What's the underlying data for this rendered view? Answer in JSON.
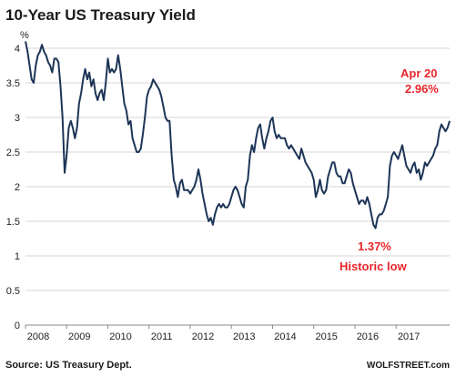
{
  "chart_data": {
    "type": "line",
    "title": "10-Year US Treasury Yield",
    "ylabel": "%",
    "xlabel": "",
    "ylim": [
      0,
      4.25
    ],
    "xlim": [
      2008.0,
      2018.3
    ],
    "yticks": [
      "0",
      "0.5",
      "1",
      "1.5",
      "2",
      "2.5",
      "3",
      "3.5",
      "4"
    ],
    "xticks": [
      "2008",
      "2009",
      "2010",
      "2011",
      "2012",
      "2013",
      "2014",
      "2015",
      "2016",
      "2017"
    ],
    "grid": "horizontal",
    "legend": "none",
    "series": [
      {
        "color": "#1d3557",
        "x": [
          2008.0,
          2008.05,
          2008.1,
          2008.15,
          2008.2,
          2008.25,
          2008.3,
          2008.35,
          2008.4,
          2008.45,
          2008.5,
          2008.55,
          2008.6,
          2008.65,
          2008.7,
          2008.75,
          2008.8,
          2008.85,
          2008.9,
          2008.95,
          2009.0,
          2009.05,
          2009.1,
          2009.15,
          2009.2,
          2009.25,
          2009.3,
          2009.35,
          2009.4,
          2009.45,
          2009.5,
          2009.55,
          2009.6,
          2009.65,
          2009.7,
          2009.75,
          2009.8,
          2009.85,
          2009.9,
          2009.95,
          2010.0,
          2010.05,
          2010.1,
          2010.15,
          2010.2,
          2010.25,
          2010.3,
          2010.35,
          2010.4,
          2010.45,
          2010.5,
          2010.55,
          2010.6,
          2010.65,
          2010.7,
          2010.75,
          2010.8,
          2010.85,
          2010.9,
          2010.95,
          2011.0,
          2011.05,
          2011.1,
          2011.15,
          2011.2,
          2011.25,
          2011.3,
          2011.35,
          2011.4,
          2011.45,
          2011.5,
          2011.55,
          2011.6,
          2011.65,
          2011.7,
          2011.75,
          2011.8,
          2011.85,
          2011.9,
          2011.95,
          2012.0,
          2012.05,
          2012.1,
          2012.15,
          2012.2,
          2012.25,
          2012.3,
          2012.35,
          2012.4,
          2012.45,
          2012.5,
          2012.55,
          2012.6,
          2012.65,
          2012.7,
          2012.75,
          2012.8,
          2012.85,
          2012.9,
          2012.95,
          2013.0,
          2013.05,
          2013.1,
          2013.15,
          2013.2,
          2013.25,
          2013.3,
          2013.35,
          2013.4,
          2013.45,
          2013.5,
          2013.55,
          2013.6,
          2013.65,
          2013.7,
          2013.75,
          2013.8,
          2013.85,
          2013.9,
          2013.95,
          2014.0,
          2014.05,
          2014.1,
          2014.15,
          2014.2,
          2014.25,
          2014.3,
          2014.35,
          2014.4,
          2014.45,
          2014.5,
          2014.55,
          2014.6,
          2014.65,
          2014.7,
          2014.75,
          2014.8,
          2014.85,
          2014.9,
          2014.95,
          2015.0,
          2015.05,
          2015.1,
          2015.15,
          2015.2,
          2015.25,
          2015.3,
          2015.35,
          2015.4,
          2015.45,
          2015.5,
          2015.55,
          2015.6,
          2015.65,
          2015.7,
          2015.75,
          2015.8,
          2015.85,
          2015.9,
          2015.95,
          2016.0,
          2016.05,
          2016.1,
          2016.15,
          2016.2,
          2016.25,
          2016.3,
          2016.35,
          2016.4,
          2016.45,
          2016.5,
          2016.55,
          2016.6,
          2016.65,
          2016.7,
          2016.75,
          2016.8,
          2016.85,
          2016.9,
          2016.95,
          2017.0,
          2017.05,
          2017.1,
          2017.15,
          2017.2,
          2017.25,
          2017.3,
          2017.35,
          2017.4,
          2017.45,
          2017.5,
          2017.55,
          2017.6,
          2017.65,
          2017.7,
          2017.75,
          2017.8,
          2017.85,
          2017.9,
          2017.95,
          2018.0,
          2018.05,
          2018.1,
          2018.15,
          2018.2,
          2018.25,
          2018.3
        ],
        "y": [
          4.1,
          3.95,
          3.75,
          3.55,
          3.5,
          3.75,
          3.9,
          3.95,
          4.05,
          3.95,
          3.9,
          3.8,
          3.75,
          3.65,
          3.85,
          3.85,
          3.8,
          3.45,
          3.0,
          2.2,
          2.45,
          2.85,
          2.95,
          2.85,
          2.7,
          2.85,
          3.2,
          3.35,
          3.55,
          3.7,
          3.55,
          3.65,
          3.45,
          3.55,
          3.35,
          3.25,
          3.35,
          3.4,
          3.25,
          3.5,
          3.85,
          3.65,
          3.7,
          3.65,
          3.7,
          3.9,
          3.7,
          3.45,
          3.2,
          3.1,
          2.9,
          2.95,
          2.7,
          2.6,
          2.5,
          2.5,
          2.55,
          2.75,
          3.0,
          3.3,
          3.4,
          3.45,
          3.55,
          3.5,
          3.45,
          3.4,
          3.3,
          3.15,
          3.0,
          2.95,
          2.95,
          2.45,
          2.1,
          2.0,
          1.85,
          2.05,
          2.1,
          1.95,
          1.95,
          1.95,
          1.9,
          1.95,
          2.0,
          2.1,
          2.25,
          2.1,
          1.9,
          1.75,
          1.6,
          1.5,
          1.55,
          1.45,
          1.6,
          1.7,
          1.75,
          1.7,
          1.75,
          1.7,
          1.7,
          1.75,
          1.85,
          1.95,
          2.0,
          1.95,
          1.85,
          1.75,
          1.7,
          2.0,
          2.1,
          2.45,
          2.6,
          2.5,
          2.7,
          2.85,
          2.9,
          2.7,
          2.55,
          2.7,
          2.8,
          2.95,
          3.0,
          2.8,
          2.7,
          2.75,
          2.7,
          2.7,
          2.7,
          2.6,
          2.55,
          2.6,
          2.55,
          2.5,
          2.45,
          2.4,
          2.55,
          2.45,
          2.35,
          2.3,
          2.25,
          2.2,
          2.1,
          1.85,
          1.95,
          2.1,
          1.95,
          1.9,
          1.95,
          2.15,
          2.25,
          2.35,
          2.35,
          2.2,
          2.15,
          2.15,
          2.05,
          2.05,
          2.15,
          2.25,
          2.2,
          2.05,
          1.95,
          1.85,
          1.75,
          1.8,
          1.8,
          1.75,
          1.85,
          1.75,
          1.6,
          1.45,
          1.4,
          1.55,
          1.6,
          1.6,
          1.65,
          1.75,
          1.85,
          2.3,
          2.45,
          2.5,
          2.45,
          2.4,
          2.5,
          2.6,
          2.45,
          2.3,
          2.25,
          2.2,
          2.3,
          2.35,
          2.2,
          2.25,
          2.1,
          2.2,
          2.35,
          2.3,
          2.35,
          2.4,
          2.45,
          2.55,
          2.6,
          2.8,
          2.9,
          2.85,
          2.8,
          2.85,
          2.95
        ]
      }
    ],
    "annotations": [
      {
        "lines": [
          "Apr 20",
          "2.96%"
        ],
        "x": 2018.3,
        "y": 2.96
      },
      {
        "lines": [
          "1.37%",
          "Historic low"
        ],
        "x": 2016.5,
        "y": 1.37
      }
    ]
  },
  "source": "Source: US Treasury Dept.",
  "brand": "WOLFSTREET.com"
}
